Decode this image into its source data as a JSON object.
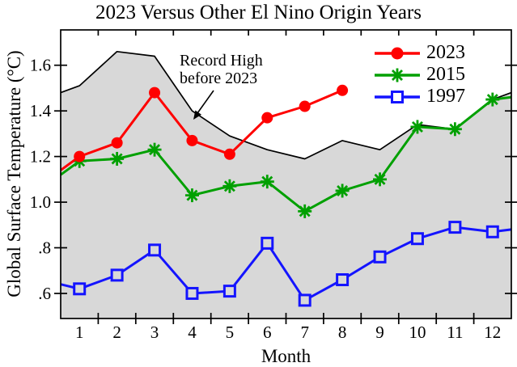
{
  "figure": {
    "title": "2023 Versus Other El Nino Origin Years",
    "x_axis": {
      "label": "Month",
      "tick_labels": [
        "1",
        "2",
        "3",
        "4",
        "5",
        "6",
        "7",
        "8",
        "9",
        "10",
        "11",
        "12"
      ]
    },
    "y_axis": {
      "label": "Global Surface Temperature (°C)",
      "tick_labels": [
        "1.6",
        "1.4",
        "1.2",
        "1.0",
        ".8",
        ".6"
      ],
      "tick_values": [
        1.6,
        1.4,
        1.2,
        1.0,
        0.8,
        0.6
      ]
    },
    "annotation": {
      "lines": [
        "Record High",
        "before 2023"
      ]
    }
  },
  "chart_data": {
    "type": "line",
    "title": "2023 Versus Other El Nino Origin Years",
    "xlabel": "Month",
    "ylabel": "Global Surface Temperature (°C)",
    "x": [
      1,
      2,
      3,
      4,
      5,
      6,
      7,
      8,
      9,
      10,
      11,
      12
    ],
    "xlim": [
      0.5,
      12.5
    ],
    "ylim": [
      0.49,
      1.755
    ],
    "grid": false,
    "legend_position": "top-right-inside",
    "background_color": "#ffffff",
    "series": [
      {
        "name": "2023",
        "color": "#ff0000",
        "marker": "circle",
        "values": [
          1.2,
          1.26,
          1.48,
          1.27,
          1.21,
          1.37,
          1.42,
          1.49,
          null,
          null,
          null,
          null
        ],
        "edge_left": 1.14,
        "edge_right": null
      },
      {
        "name": "2015",
        "color": "#00a000",
        "marker": "asterisk",
        "values": [
          1.18,
          1.19,
          1.23,
          1.03,
          1.07,
          1.09,
          0.96,
          1.05,
          1.1,
          1.33,
          1.32,
          1.45
        ],
        "edge_left": 1.12,
        "edge_right": 1.46
      },
      {
        "name": "1997",
        "color": "#1414ff",
        "marker": "square",
        "values": [
          0.62,
          0.68,
          0.79,
          0.6,
          0.61,
          0.82,
          0.57,
          0.66,
          0.76,
          0.84,
          0.89,
          0.87
        ],
        "edge_left": 0.64,
        "edge_right": 0.88
      }
    ],
    "record_high_area": {
      "label": "Record High before 2023",
      "fill_color": "#d8d8d8",
      "line_color": "#000000",
      "months": [
        0.5,
        1,
        2,
        3,
        4,
        5,
        6,
        7,
        8,
        9,
        10,
        11,
        12,
        12.5
      ],
      "values": [
        1.48,
        1.51,
        1.66,
        1.64,
        1.4,
        1.29,
        1.23,
        1.19,
        1.27,
        1.23,
        1.34,
        1.32,
        1.45,
        1.48
      ]
    }
  }
}
